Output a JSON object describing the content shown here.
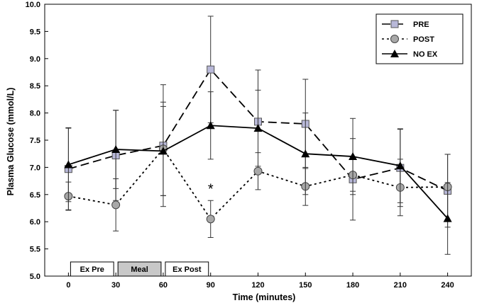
{
  "chart_data": {
    "type": "line",
    "title": "",
    "xlabel": "Time (minutes)",
    "ylabel": "Plasma Glucose (mmol/L)",
    "x": [
      0,
      30,
      60,
      90,
      120,
      150,
      180,
      210,
      240
    ],
    "xlim": [
      -15,
      255
    ],
    "ylim": [
      5.0,
      10.0
    ],
    "yticks": [
      "5.0",
      "5.5",
      "6.0",
      "6.5",
      "7.0",
      "7.5",
      "8.0",
      "8.5",
      "9.0",
      "9.5",
      "10.0"
    ],
    "xticks": [
      "0",
      "30",
      "60",
      "90",
      "120",
      "150",
      "180",
      "210",
      "240"
    ],
    "grid": false,
    "legend_position": "top-right",
    "series": [
      {
        "name": "PRE",
        "values": [
          6.97,
          7.22,
          7.4,
          8.8,
          7.84,
          7.8,
          6.78,
          6.99,
          6.57
        ],
        "errors": [
          0.75,
          0.83,
          1.12,
          0.98,
          0.95,
          0.82,
          0.75,
          0.71,
          0.67
        ],
        "line_style": "dashed",
        "marker": "square",
        "color": "#000000",
        "marker_fill": "#b8b8d8"
      },
      {
        "name": "POST",
        "values": [
          6.47,
          6.31,
          7.34,
          6.05,
          6.93,
          6.65,
          6.86,
          6.63,
          6.64
        ],
        "errors": [
          0.26,
          0.48,
          0.86,
          0.34,
          0.34,
          0.35,
          0.3,
          0.52,
          0.6
        ],
        "line_style": "dotted",
        "marker": "circle",
        "color": "#000000",
        "marker_fill": "#a8a8a8"
      },
      {
        "name": "NO EX",
        "values": [
          7.05,
          7.33,
          7.3,
          7.77,
          7.72,
          7.25,
          7.2,
          7.03,
          6.06
        ],
        "errors": [
          0.68,
          0.72,
          0.82,
          0.62,
          0.7,
          0.75,
          0.7,
          0.68,
          0.66
        ],
        "line_style": "solid",
        "marker": "triangle",
        "color": "#000000",
        "marker_fill": "#000000"
      }
    ],
    "annotations": [
      {
        "text": "*",
        "x": 90,
        "y": 6.62
      }
    ],
    "period_boxes": [
      {
        "label": "Ex Pre",
        "start": 0,
        "end": 30,
        "fill": "#ffffff"
      },
      {
        "label": "Meal",
        "start": 30,
        "end": 60,
        "fill": "#c8c8c8"
      },
      {
        "label": "Ex Post",
        "start": 60,
        "end": 90,
        "fill": "#ffffff"
      }
    ]
  }
}
